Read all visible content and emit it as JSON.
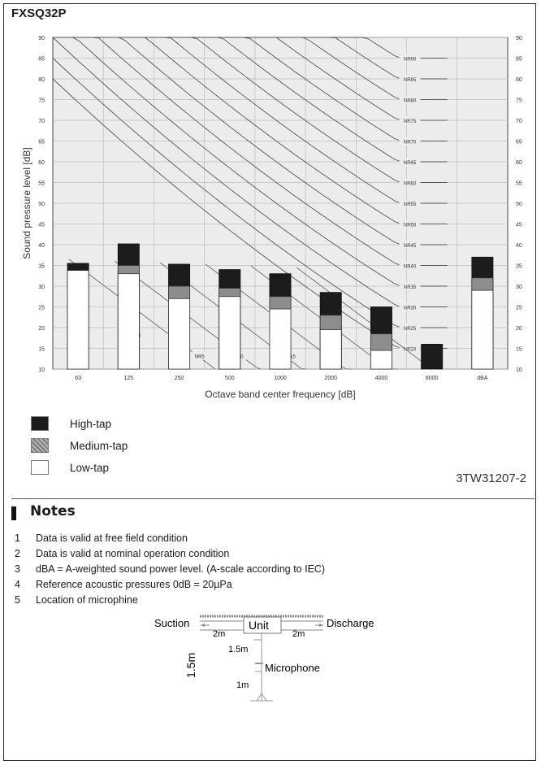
{
  "model": "FXSQ32P",
  "chart_data": {
    "type": "bar",
    "xlabel": "Octave band center frequency [dB]",
    "ylabel": "Sound pressure level [dB]",
    "categories": [
      "63",
      "125",
      "250",
      "500",
      "1000",
      "2000",
      "4000",
      "8000",
      "dBA"
    ],
    "ylim": [
      10,
      90
    ],
    "yticks": [
      10,
      15,
      20,
      25,
      30,
      35,
      40,
      45,
      50,
      55,
      60,
      65,
      70,
      75,
      80,
      85,
      90
    ],
    "series": [
      {
        "name": "High-tap",
        "values": [
          35.5,
          40.2,
          35.3,
          34,
          33,
          28.5,
          25,
          16,
          37
        ]
      },
      {
        "name": "Medium-tap",
        "values": [
          33.8,
          35,
          30,
          29.5,
          27.5,
          23,
          18.5,
          null,
          32
        ]
      },
      {
        "name": "Low-tap",
        "values": [
          33.8,
          33,
          27,
          27.5,
          24.5,
          19.5,
          14.5,
          null,
          29
        ]
      }
    ],
    "nr_curves": [
      "NR90",
      "NR85",
      "NR80",
      "NR75",
      "NR70",
      "NR65",
      "NR60",
      "NR55",
      "NR50",
      "NR45",
      "NR40",
      "NR35",
      "NR30",
      "NR25",
      "NR20"
    ],
    "nr_inner_labels": [
      "NR0",
      "NR5",
      "NR10",
      "NR15"
    ],
    "grid": true,
    "colors": {
      "high": "#1c1c1c",
      "medium": "#8d8d8d",
      "low": "#ffffff",
      "plot_bg": "#ececec"
    }
  },
  "legend": [
    {
      "label": "High-tap",
      "color": "#1c1c1c"
    },
    {
      "label": "Medium-tap",
      "color": "#9a9a9a"
    },
    {
      "label": "Low-tap",
      "color": "#ffffff"
    }
  ],
  "doc_code": "3TW31207-2",
  "notes_title": "Notes",
  "notes": [
    {
      "num": "1",
      "text": "Data is valid at free field condition"
    },
    {
      "num": "2",
      "text": "Data is valid at nominal operation condition"
    },
    {
      "num": "3",
      "text": "dBA = A-weighted sound power level. (A-scale according to IEC)"
    },
    {
      "num": "4",
      "text": "Reference acoustic pressures 0dB = 20µPa"
    },
    {
      "num": "5",
      "text": "Location of microphine"
    }
  ],
  "diagram": {
    "suction": "Suction",
    "unit": "Unit",
    "discharge": "Discharge",
    "dist_left": "2m",
    "dist_right": "2m",
    "height": "1.5m",
    "height_small": "1.5m",
    "mic_label": "Microphone",
    "mic_dist": "1m"
  }
}
